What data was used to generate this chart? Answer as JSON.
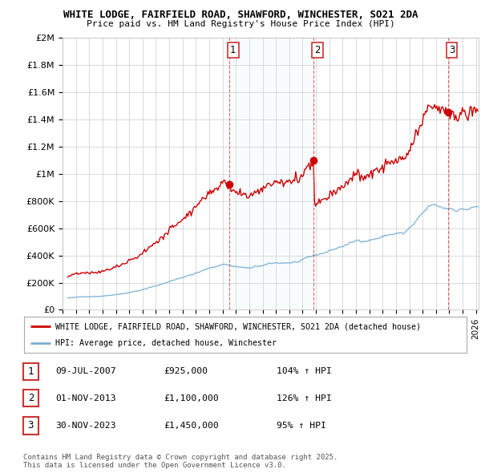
{
  "title1": "WHITE LODGE, FAIRFIELD ROAD, SHAWFORD, WINCHESTER, SO21 2DA",
  "title2": "Price paid vs. HM Land Registry's House Price Index (HPI)",
  "ylabel_ticks": [
    "£0",
    "£200K",
    "£400K",
    "£600K",
    "£800K",
    "£1M",
    "£1.2M",
    "£1.4M",
    "£1.6M",
    "£1.8M",
    "£2M"
  ],
  "ytick_values": [
    0,
    200000,
    400000,
    600000,
    800000,
    1000000,
    1200000,
    1400000,
    1600000,
    1800000,
    2000000
  ],
  "ylim": [
    0,
    2000000
  ],
  "xlim_start": 1995.3,
  "xlim_end": 2026.2,
  "sale_dates": [
    2007.52,
    2013.835,
    2023.915
  ],
  "sale_prices": [
    925000,
    1100000,
    1450000
  ],
  "sale_labels": [
    "1",
    "2",
    "3"
  ],
  "vline_color": "#dd4444",
  "property_line_color": "#cc0000",
  "hpi_line_color": "#7ab0d4",
  "shade_color": "#ddeeff",
  "legend_property": "WHITE LODGE, FAIRFIELD ROAD, SHAWFORD, WINCHESTER, SO21 2DA (detached house)",
  "legend_hpi": "HPI: Average price, detached house, Winchester",
  "table_rows": [
    {
      "num": "1",
      "date": "09-JUL-2007",
      "price": "£925,000",
      "hpi": "104% ↑ HPI"
    },
    {
      "num": "2",
      "date": "01-NOV-2013",
      "price": "£1,100,000",
      "hpi": "126% ↑ HPI"
    },
    {
      "num": "3",
      "date": "30-NOV-2023",
      "price": "£1,450,000",
      "hpi": "95% ↑ HPI"
    }
  ],
  "footnote": "Contains HM Land Registry data © Crown copyright and database right 2025.\nThis data is licensed under the Open Government Licence v3.0.",
  "background_color": "#ffffff",
  "plot_background": "#ffffff",
  "grid_color": "#cccccc"
}
